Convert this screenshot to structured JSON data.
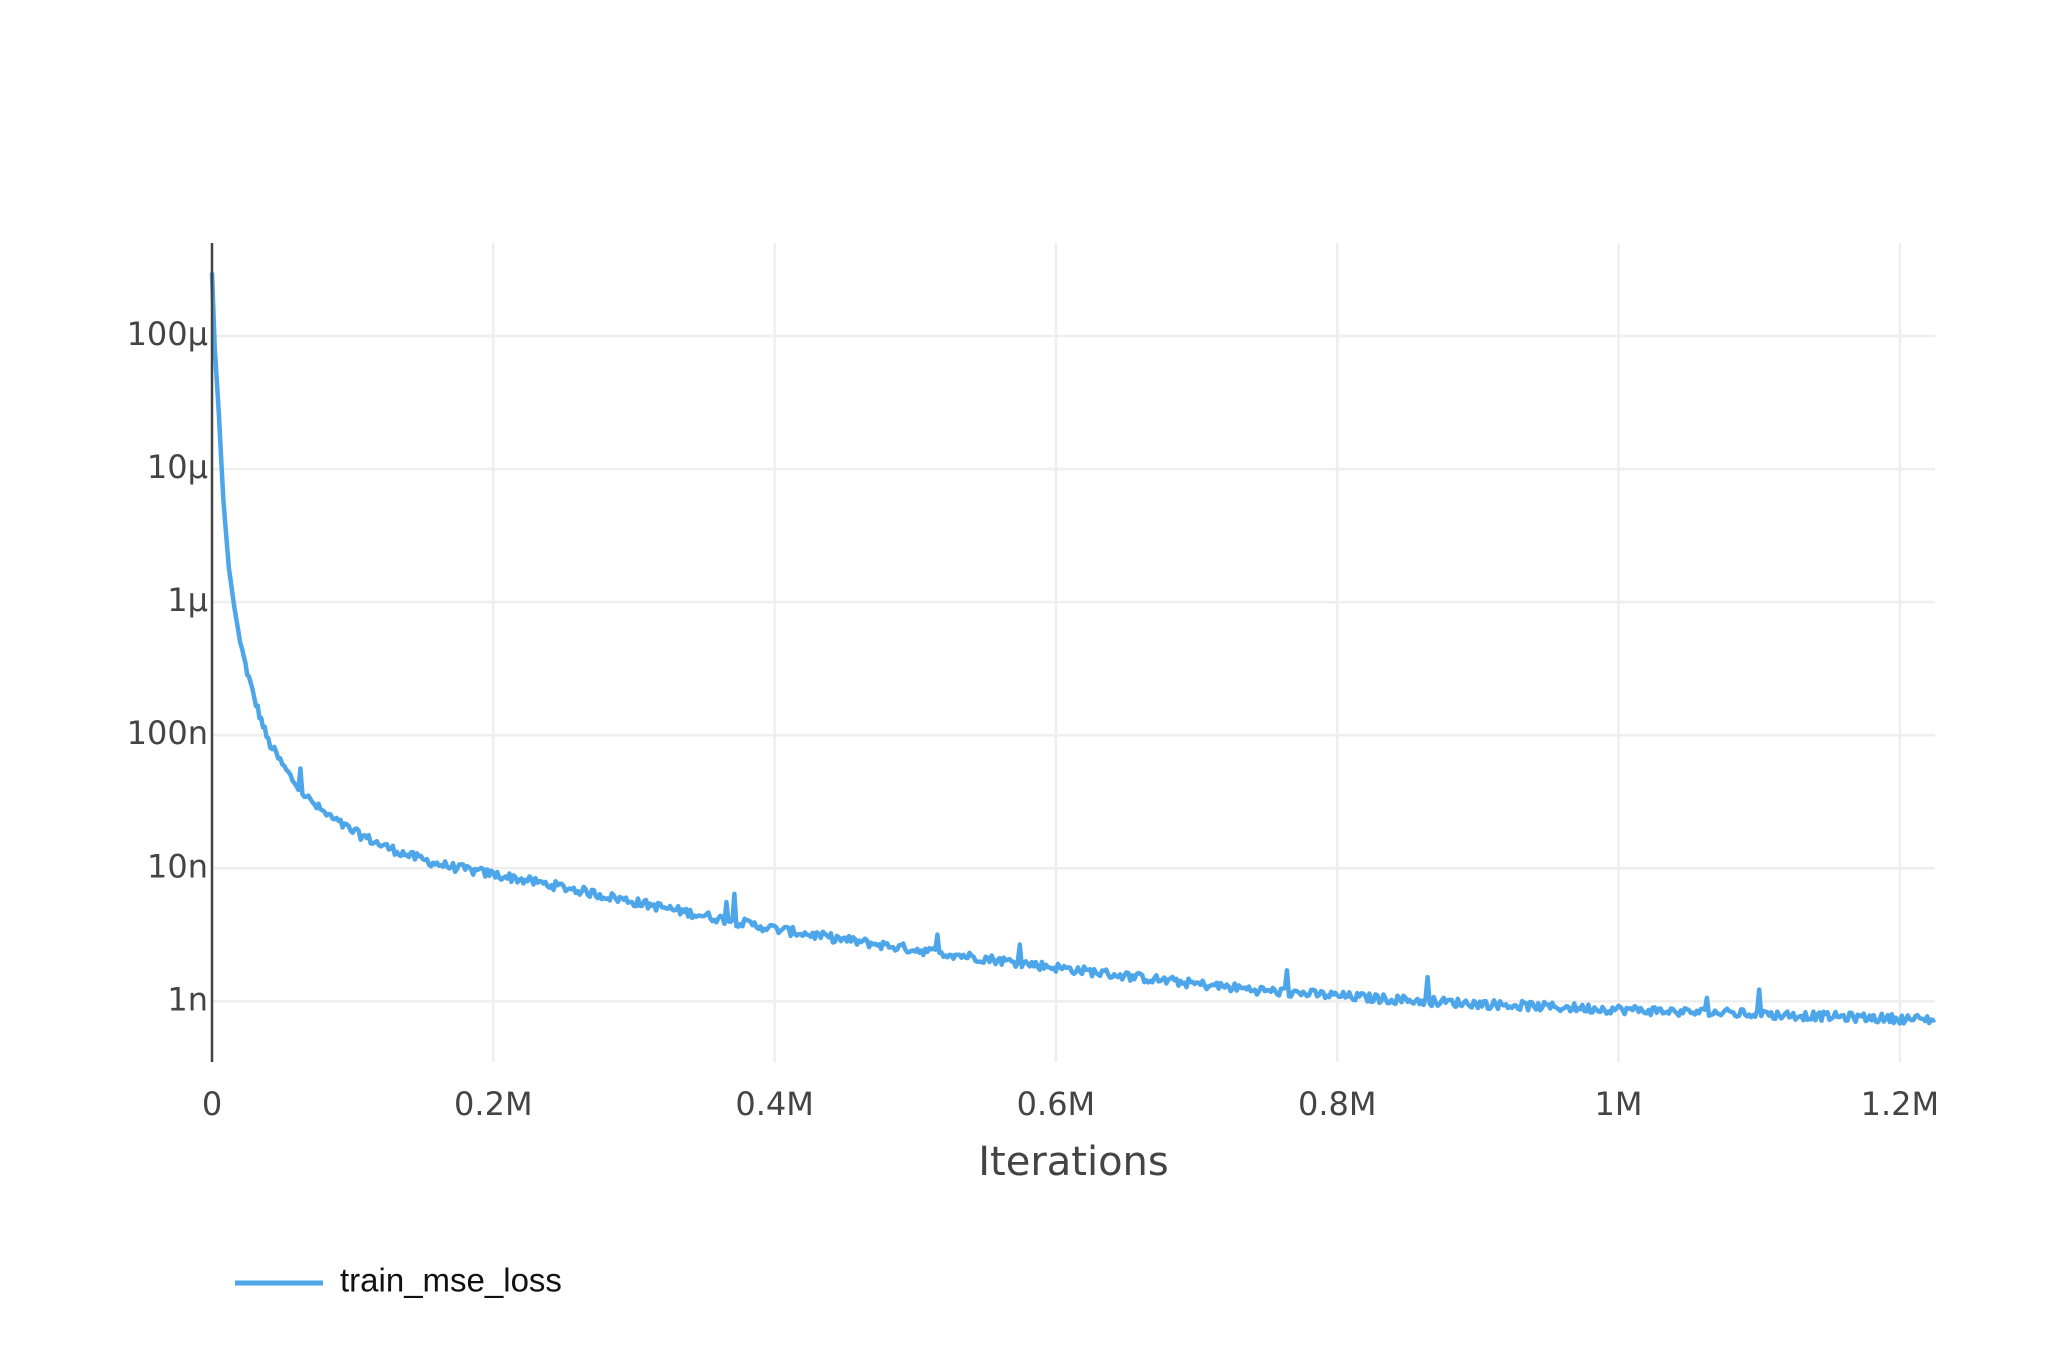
{
  "chart_data": {
    "type": "line",
    "title": "",
    "xlabel": "Iterations",
    "ylabel": "",
    "y_scale": "log",
    "xlim": [
      0,
      1225000
    ],
    "ylim": [
      3.5e-10,
      0.0005
    ],
    "grid": true,
    "legend_position": "bottom-left",
    "x_ticks": [
      {
        "value": 0,
        "label": "0"
      },
      {
        "value": 200000,
        "label": "0.2M"
      },
      {
        "value": 400000,
        "label": "0.4M"
      },
      {
        "value": 600000,
        "label": "0.6M"
      },
      {
        "value": 800000,
        "label": "0.8M"
      },
      {
        "value": 1000000,
        "label": "1M"
      },
      {
        "value": 1200000,
        "label": "1.2M"
      }
    ],
    "y_ticks": [
      {
        "value": 1e-09,
        "label": "1n"
      },
      {
        "value": 1e-08,
        "label": "10n"
      },
      {
        "value": 1e-07,
        "label": "100n"
      },
      {
        "value": 1e-06,
        "label": "1μ"
      },
      {
        "value": 1e-05,
        "label": "10μ"
      },
      {
        "value": 0.0001,
        "label": "100μ"
      }
    ],
    "series": [
      {
        "name": "train_mse_loss",
        "color": "#4da6ea",
        "x": [
          0,
          2000,
          5000,
          8000,
          12000,
          16000,
          20000,
          25000,
          30000,
          35000,
          40000,
          50000,
          60000,
          70000,
          80000,
          90000,
          100000,
          120000,
          140000,
          160000,
          180000,
          200000,
          250000,
          300000,
          350000,
          400000,
          450000,
          500000,
          550000,
          600000,
          650000,
          700000,
          750000,
          800000,
          850000,
          900000,
          950000,
          1000000,
          1050000,
          1100000,
          1150000,
          1200000,
          1225000
        ],
        "y": [
          0.0003,
          8e-05,
          2.5e-05,
          6e-06,
          1.8e-06,
          9e-07,
          5e-07,
          3e-07,
          1.9e-07,
          1.3e-07,
          9e-08,
          6e-08,
          4.2e-08,
          3.2e-08,
          2.6e-08,
          2.2e-08,
          1.9e-08,
          1.5e-08,
          1.25e-08,
          1.08e-08,
          9.8e-09,
          9e-09,
          7.2e-09,
          5.6e-09,
          4.4e-09,
          3.5e-09,
          2.9e-09,
          2.45e-09,
          2.1e-09,
          1.8e-09,
          1.55e-09,
          1.35e-09,
          1.2e-09,
          1.1e-09,
          1.02e-09,
          9.6e-10,
          9.1e-10,
          8.7e-10,
          8.3e-10,
          8e-10,
          7.7e-10,
          7.4e-10,
          7.3e-10
        ]
      }
    ]
  }
}
